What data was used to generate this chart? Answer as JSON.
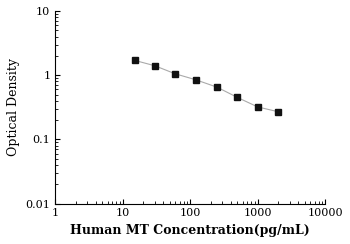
{
  "x": [
    15,
    30,
    60,
    120,
    250,
    500,
    1000,
    2000
  ],
  "y": [
    1.7,
    1.4,
    1.05,
    0.85,
    0.65,
    0.45,
    0.32,
    0.27
  ],
  "xlim": [
    1,
    10000
  ],
  "ylim": [
    0.01,
    10
  ],
  "xlabel": "Human MT Concentration(pg/mL)",
  "ylabel": "Optical Density",
  "line_color": "#aaaaaa",
  "marker_color": "#111111",
  "marker": "s",
  "marker_size": 4,
  "line_width": 0.8,
  "xticks": [
    1,
    10,
    100,
    1000,
    10000
  ],
  "yticks": [
    0.01,
    0.1,
    1,
    10
  ],
  "xlabel_fontsize": 9,
  "ylabel_fontsize": 9,
  "tick_fontsize": 8
}
